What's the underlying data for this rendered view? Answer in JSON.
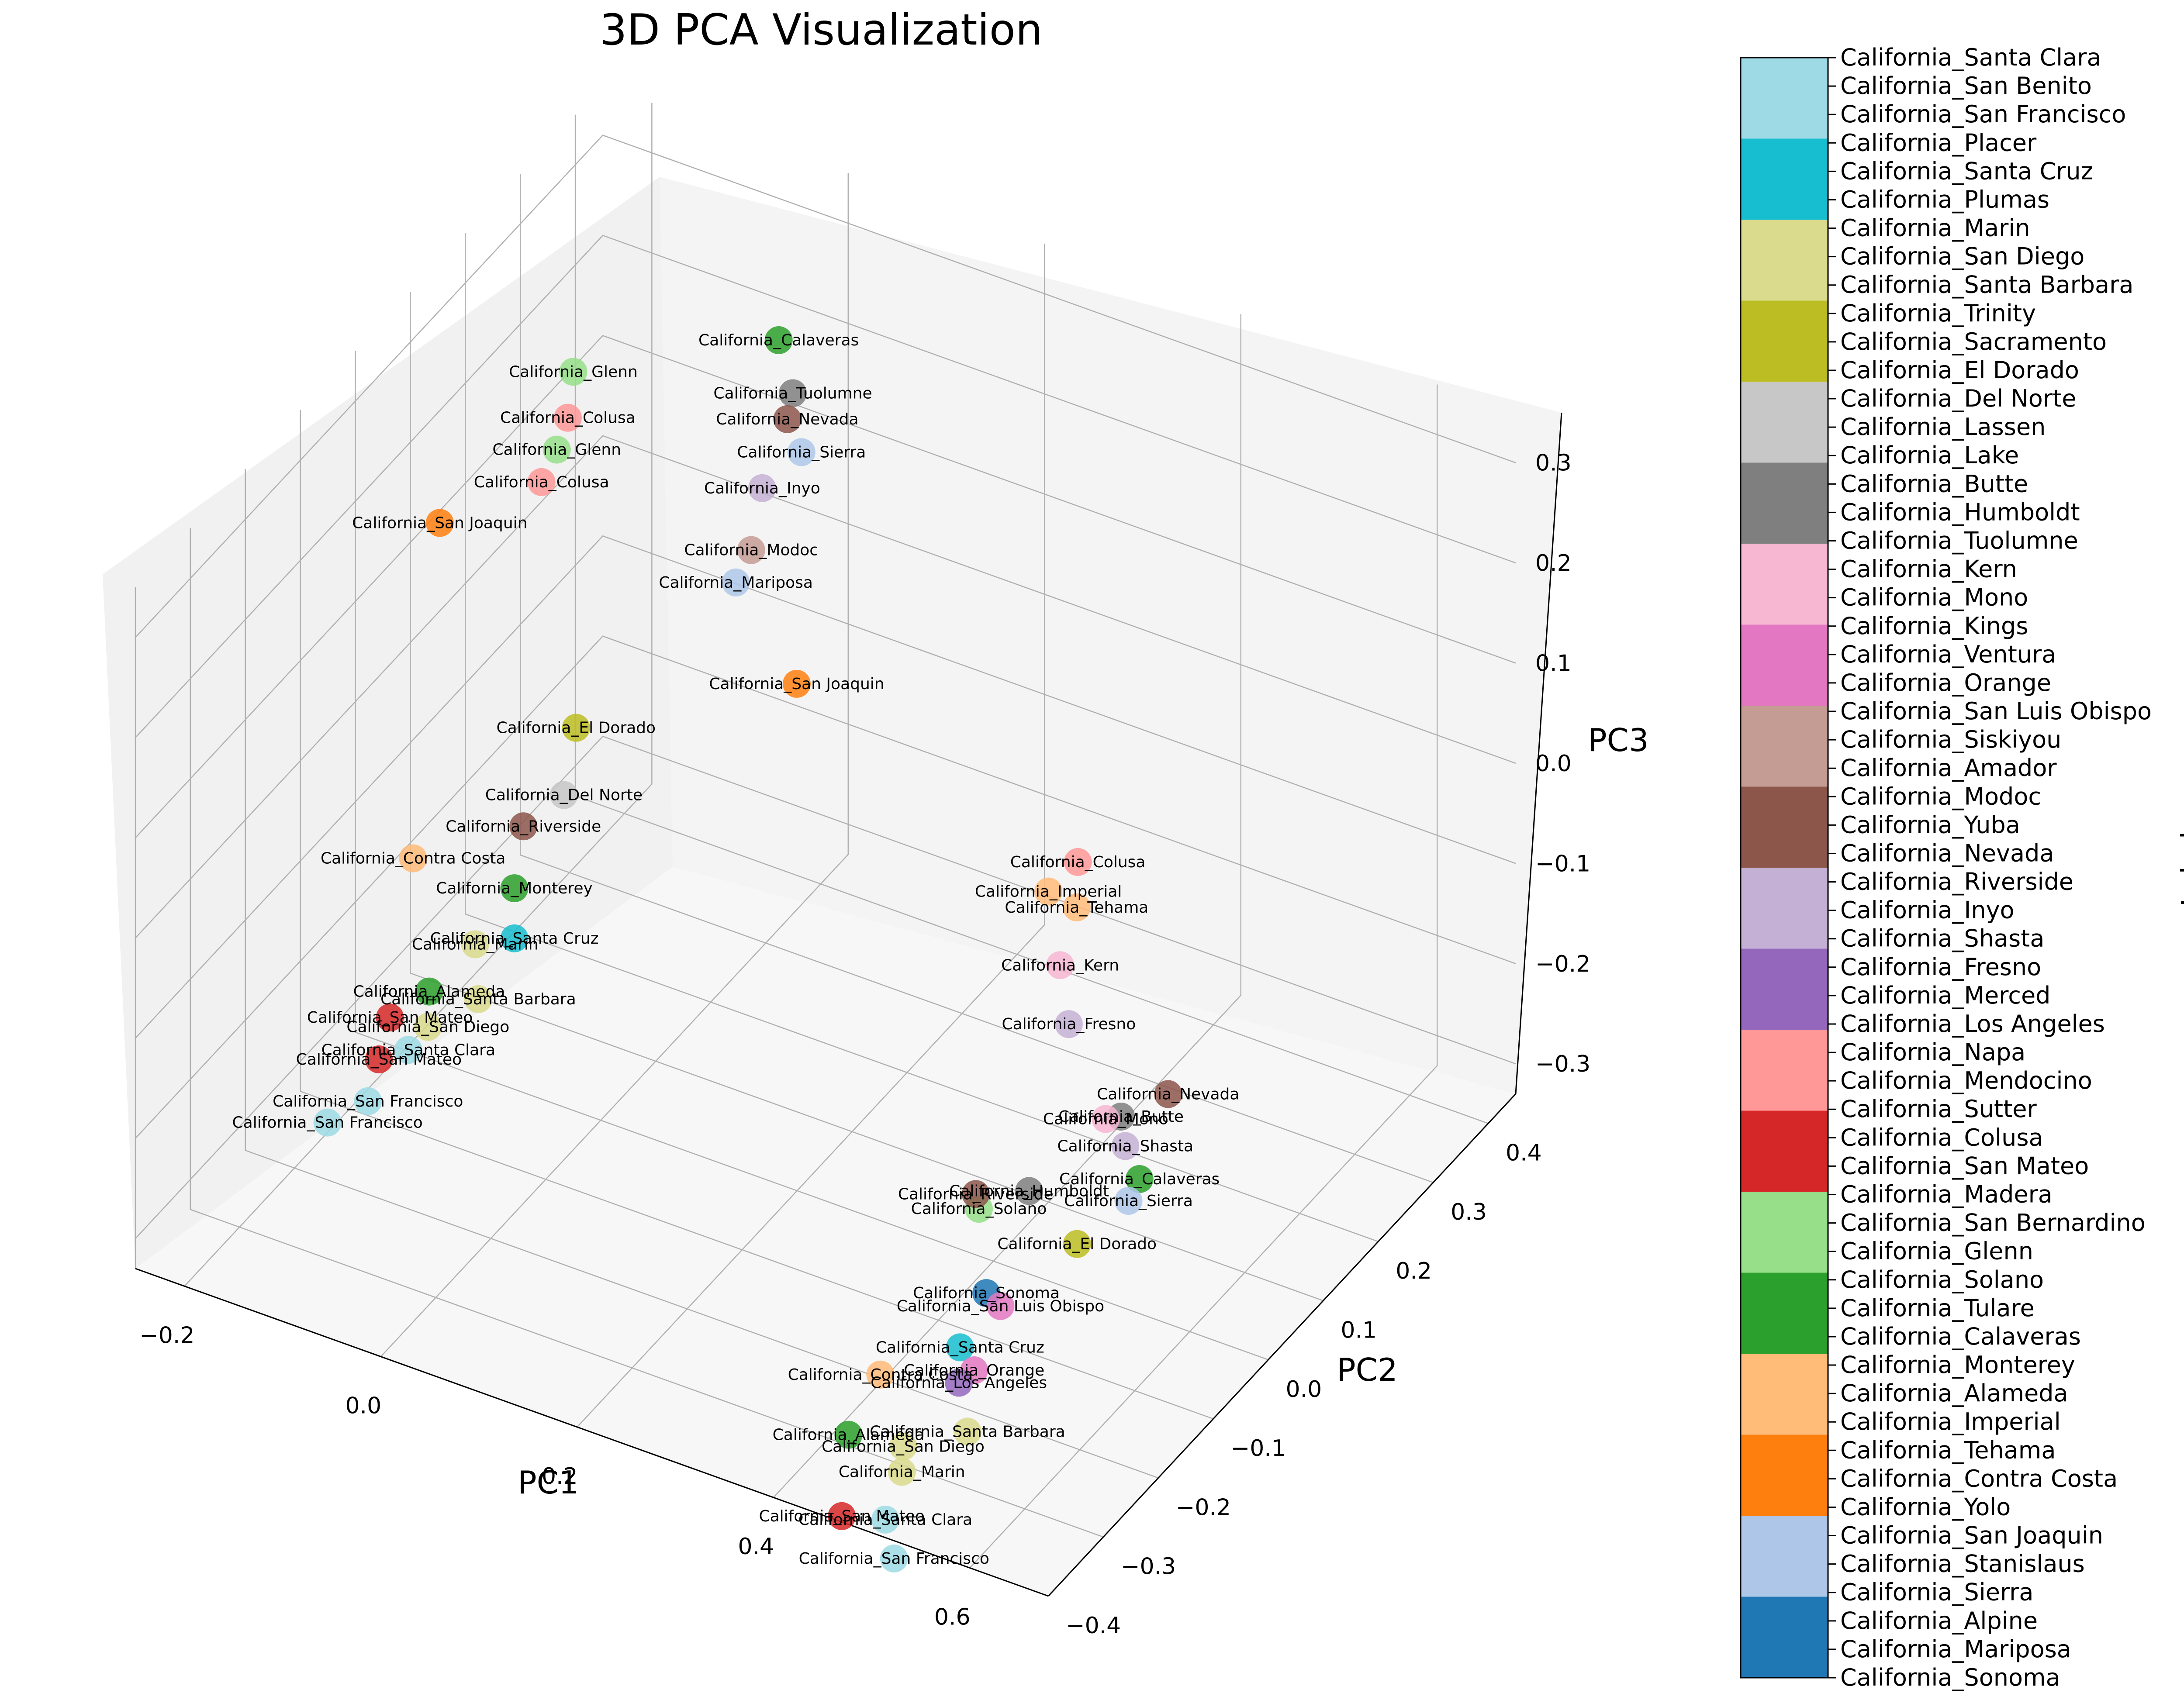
{
  "chart_data": {
    "type": "scatter",
    "title": "3D PCA Visualization",
    "xlabel": "PC1",
    "ylabel": "PC2",
    "zlabel": "PC3",
    "colorbar_label": "Label",
    "x_ticks": [
      "−0.2",
      "0.0",
      "0.2",
      "0.4",
      "0.6"
    ],
    "y_ticks": [
      "−0.4",
      "−0.3",
      "−0.2",
      "−0.1",
      "0.0",
      "0.1",
      "0.2",
      "0.3",
      "0.4"
    ],
    "z_ticks": [
      "−0.3",
      "−0.2",
      "−0.1",
      "0.0",
      "0.1",
      "0.2",
      "0.3"
    ],
    "xlim": [
      -0.25,
      0.68
    ],
    "ylim": [
      -0.4,
      0.45
    ],
    "zlim": [
      -0.33,
      0.35
    ],
    "grid": true,
    "colormap": "tab20",
    "categories": [
      "California_Santa Clara",
      "California_San Benito",
      "California_San Francisco",
      "California_Placer",
      "California_Santa Cruz",
      "California_Plumas",
      "California_Marin",
      "California_San Diego",
      "California_Santa Barbara",
      "California_Trinity",
      "California_Sacramento",
      "California_El Dorado",
      "California_Del Norte",
      "California_Lassen",
      "California_Lake",
      "California_Butte",
      "California_Humboldt",
      "California_Tuolumne",
      "California_Kern",
      "California_Mono",
      "California_Kings",
      "California_Ventura",
      "California_Orange",
      "California_San Luis Obispo",
      "California_Siskiyou",
      "California_Amador",
      "California_Modoc",
      "California_Yuba",
      "California_Nevada",
      "California_Riverside",
      "California_Inyo",
      "California_Shasta",
      "California_Fresno",
      "California_Merced",
      "California_Los Angeles",
      "California_Napa",
      "California_Mendocino",
      "California_Sutter",
      "California_Colusa",
      "California_San Mateo",
      "California_Madera",
      "California_San Bernardino",
      "California_Glenn",
      "California_Solano",
      "California_Tulare",
      "California_Calaveras",
      "California_Monterey",
      "California_Alameda",
      "California_Imperial",
      "California_Tehama",
      "California_Contra Costa",
      "California_Yolo",
      "California_San Joaquin",
      "California_Stanislaus",
      "California_Sierra",
      "California_Alpine",
      "California_Mariposa",
      "California_Sonoma"
    ],
    "colors": [
      "#9edae5",
      "#9edae5",
      "#9edae5",
      "#17becf",
      "#17becf",
      "#17becf",
      "#dbdb8d",
      "#dbdb8d",
      "#dbdb8d",
      "#bcbd22",
      "#bcbd22",
      "#bcbd22",
      "#c7c7c7",
      "#c7c7c7",
      "#c7c7c7",
      "#7f7f7f",
      "#7f7f7f",
      "#7f7f7f",
      "#f7b6d2",
      "#f7b6d2",
      "#f7b6d2",
      "#e377c2",
      "#e377c2",
      "#e377c2",
      "#c49c94",
      "#c49c94",
      "#c49c94",
      "#8c564b",
      "#8c564b",
      "#8c564b",
      "#c5b0d5",
      "#c5b0d5",
      "#c5b0d5",
      "#9467bd",
      "#9467bd",
      "#9467bd",
      "#ff9896",
      "#ff9896",
      "#ff9896",
      "#d62728",
      "#d62728",
      "#d62728",
      "#98df8a",
      "#98df8a",
      "#98df8a",
      "#2ca02c",
      "#2ca02c",
      "#2ca02c",
      "#ffbb78",
      "#ffbb78",
      "#ffbb78",
      "#ff7f0e",
      "#ff7f0e",
      "#ff7f0e",
      "#aec7e8",
      "#aec7e8",
      "#aec7e8",
      "#1f77b4"
    ],
    "points": [
      {
        "label": "California_Calaveras",
        "x": 0.03,
        "y": 0.27,
        "z": 0.3
      },
      {
        "label": "California_Tuolumne",
        "x": 0.05,
        "y": 0.26,
        "z": 0.26
      },
      {
        "label": "California_Nevada",
        "x": 0.05,
        "y": 0.25,
        "z": 0.24
      },
      {
        "label": "California_Sierra",
        "x": 0.07,
        "y": 0.24,
        "z": 0.22
      },
      {
        "label": "California_Inyo",
        "x": 0.03,
        "y": 0.24,
        "z": 0.17
      },
      {
        "label": "California_Modoc",
        "x": 0.03,
        "y": 0.22,
        "z": 0.12
      },
      {
        "label": "California_Mariposa",
        "x": 0.02,
        "y": 0.21,
        "z": 0.09
      },
      {
        "label": "California_San Joaquin",
        "x": 0.11,
        "y": 0.16,
        "z": 0.05
      },
      {
        "label": "California_Glenn",
        "x": -0.14,
        "y": 0.2,
        "z": 0.25
      },
      {
        "label": "California_Colusa",
        "x": -0.14,
        "y": 0.19,
        "z": 0.21
      },
      {
        "label": "California_Glenn",
        "x": -0.14,
        "y": 0.17,
        "z": 0.19
      },
      {
        "label": "California_Colusa",
        "x": -0.15,
        "y": 0.16,
        "z": 0.16
      },
      {
        "label": "California_San Joaquin",
        "x": -0.22,
        "y": 0.1,
        "z": 0.13
      },
      {
        "label": "California_El Dorado",
        "x": -0.07,
        "y": 0.08,
        "z": -0.01
      },
      {
        "label": "California_Del Norte",
        "x": -0.06,
        "y": 0.04,
        "z": -0.05
      },
      {
        "label": "California_Riverside",
        "x": -0.09,
        "y": 0.02,
        "z": -0.08
      },
      {
        "label": "California_Monterey",
        "x": -0.06,
        "y": -0.05,
        "z": -0.09
      },
      {
        "label": "California_Contra Costa",
        "x": -0.18,
        "y": -0.02,
        "z": -0.12
      },
      {
        "label": "California_Santa Cruz",
        "x": -0.06,
        "y": -0.05,
        "z": -0.14
      },
      {
        "label": "California_Marin",
        "x": -0.1,
        "y": -0.05,
        "z": -0.16
      },
      {
        "label": "California_Santa Barbara",
        "x": -0.08,
        "y": -0.08,
        "z": -0.19
      },
      {
        "label": "California_Alameda",
        "x": -0.13,
        "y": -0.08,
        "z": -0.2
      },
      {
        "label": "California_San Diego",
        "x": -0.12,
        "y": -0.1,
        "z": -0.22
      },
      {
        "label": "California_San Mateo",
        "x": -0.17,
        "y": -0.08,
        "z": -0.24
      },
      {
        "label": "California_Santa Clara",
        "x": -0.14,
        "y": -0.1,
        "z": -0.25
      },
      {
        "label": "California_San Mateo",
        "x": -0.17,
        "y": -0.1,
        "z": -0.27
      },
      {
        "label": "California_San Francisco",
        "x": -0.17,
        "y": -0.12,
        "z": -0.3
      },
      {
        "label": "California_San Francisco",
        "x": -0.2,
        "y": -0.14,
        "z": -0.32
      },
      {
        "label": "California_Colusa",
        "x": 0.43,
        "y": 0.1,
        "z": 0.02
      },
      {
        "label": "California_Tehama",
        "x": 0.44,
        "y": 0.08,
        "z": -0.01
      },
      {
        "label": "California_Imperial",
        "x": 0.4,
        "y": 0.1,
        "z": -0.02
      },
      {
        "label": "California_Kern",
        "x": 0.44,
        "y": 0.05,
        "z": -0.05
      },
      {
        "label": "California_Fresno",
        "x": 0.46,
        "y": 0.03,
        "z": -0.09
      },
      {
        "label": "California_Nevada",
        "x": 0.55,
        "y": 0.05,
        "z": -0.14
      },
      {
        "label": "California_Butte",
        "x": 0.53,
        "y": 0.0,
        "z": -0.14
      },
      {
        "label": "California_Mono",
        "x": 0.52,
        "y": -0.01,
        "z": -0.14
      },
      {
        "label": "California_Shasta",
        "x": 0.54,
        "y": -0.01,
        "z": -0.16
      },
      {
        "label": "California_Calaveras",
        "x": 0.56,
        "y": -0.02,
        "z": -0.18
      },
      {
        "label": "California_Sierra",
        "x": 0.56,
        "y": -0.04,
        "z": -0.19
      },
      {
        "label": "California_El Dorado",
        "x": 0.53,
        "y": -0.08,
        "z": -0.22
      },
      {
        "label": "California_Humboldt",
        "x": 0.47,
        "y": -0.06,
        "z": -0.2
      },
      {
        "label": "California_Solano",
        "x": 0.43,
        "y": -0.08,
        "z": -0.22
      },
      {
        "label": "California_Riverside",
        "x": 0.41,
        "y": -0.05,
        "z": -0.23
      },
      {
        "label": "California_Sonoma",
        "x": 0.46,
        "y": -0.12,
        "z": -0.27
      },
      {
        "label": "California_San Luis Obispo",
        "x": 0.48,
        "y": -0.13,
        "z": -0.27
      },
      {
        "label": "California_Santa Cruz",
        "x": 0.45,
        "y": -0.15,
        "z": -0.31
      },
      {
        "label": "California_Orange",
        "x": 0.47,
        "y": -0.16,
        "z": -0.32
      },
      {
        "label": "California_Los Angeles",
        "x": 0.46,
        "y": -0.17,
        "z": -0.33
      },
      {
        "label": "California_Santa Barbara",
        "x": 0.48,
        "y": -0.19,
        "z": -0.36
      },
      {
        "label": "California_Contra Costa",
        "x": 0.38,
        "y": -0.17,
        "z": -0.35
      },
      {
        "label": "California_San Diego",
        "x": 0.42,
        "y": -0.2,
        "z": -0.39
      },
      {
        "label": "California_Marin",
        "x": 0.43,
        "y": -0.22,
        "z": -0.4
      },
      {
        "label": "California_Santa Clara",
        "x": 0.43,
        "y": -0.25,
        "z": -0.43
      },
      {
        "label": "California_San Francisco",
        "x": 0.45,
        "y": -0.27,
        "z": -0.45
      },
      {
        "label": "California_San Mateo",
        "x": 0.38,
        "y": -0.24,
        "z": -0.45
      },
      {
        "label": "California_Alameda",
        "x": 0.37,
        "y": -0.21,
        "z": -0.39
      }
    ]
  }
}
